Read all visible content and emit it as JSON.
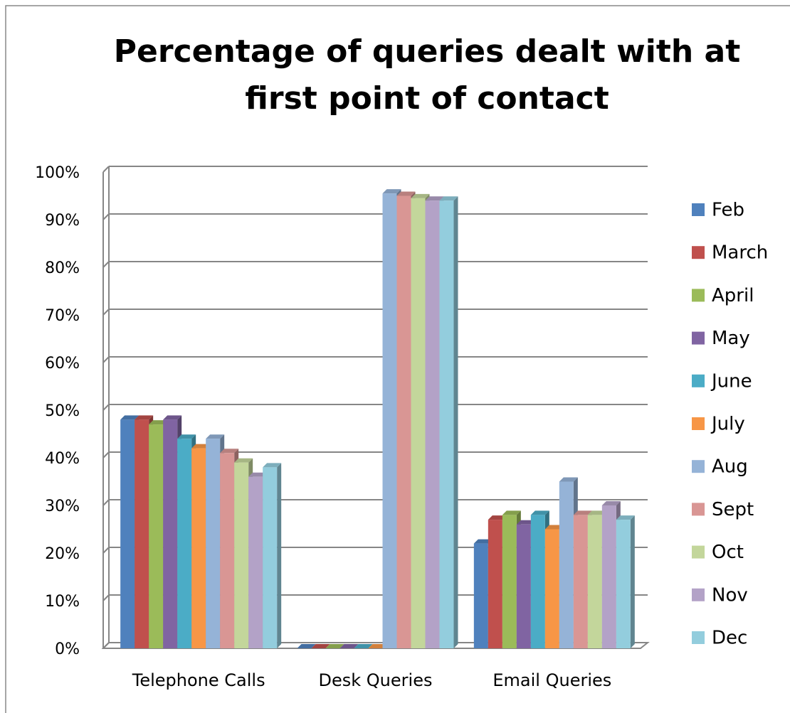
{
  "chart_data": {
    "type": "bar",
    "title": "Percentage of queries dealt with at first point of contact",
    "categories": [
      "Telephone Calls",
      "Desk Queries",
      "Email Queries"
    ],
    "series": [
      {
        "name": "Feb",
        "color": "#4f81bd",
        "values": [
          48,
          0,
          22
        ]
      },
      {
        "name": "March",
        "color": "#c0504d",
        "values": [
          48,
          0,
          27
        ]
      },
      {
        "name": "April",
        "color": "#9bbb59",
        "values": [
          47,
          0,
          28
        ]
      },
      {
        "name": "May",
        "color": "#8064a2",
        "values": [
          48,
          0,
          26
        ]
      },
      {
        "name": "June",
        "color": "#4bacc6",
        "values": [
          44,
          0,
          28
        ]
      },
      {
        "name": "July",
        "color": "#f79646",
        "values": [
          42,
          0,
          25
        ]
      },
      {
        "name": "Aug",
        "color": "#95b3d7",
        "values": [
          44,
          95.5,
          35
        ]
      },
      {
        "name": "Sept",
        "color": "#d99694",
        "values": [
          41,
          95,
          28
        ]
      },
      {
        "name": "Oct",
        "color": "#c3d69b",
        "values": [
          39,
          94.5,
          28
        ]
      },
      {
        "name": "Nov",
        "color": "#b3a2c7",
        "values": [
          36,
          94,
          30
        ]
      },
      {
        "name": "Dec",
        "color": "#93cddd",
        "values": [
          38,
          94,
          27
        ]
      }
    ],
    "ylim": [
      0,
      100
    ],
    "yticks": [
      {
        "value": 0,
        "label": "0%"
      },
      {
        "value": 10,
        "label": "10%"
      },
      {
        "value": 20,
        "label": "20%"
      },
      {
        "value": 30,
        "label": "30%"
      },
      {
        "value": 40,
        "label": "40%"
      },
      {
        "value": 50,
        "label": "50%"
      },
      {
        "value": 60,
        "label": "60%"
      },
      {
        "value": 70,
        "label": "70%"
      },
      {
        "value": 80,
        "label": "80%"
      },
      {
        "value": 90,
        "label": "90%"
      },
      {
        "value": 100,
        "label": "100%"
      }
    ],
    "grid": true,
    "legend": "right"
  }
}
